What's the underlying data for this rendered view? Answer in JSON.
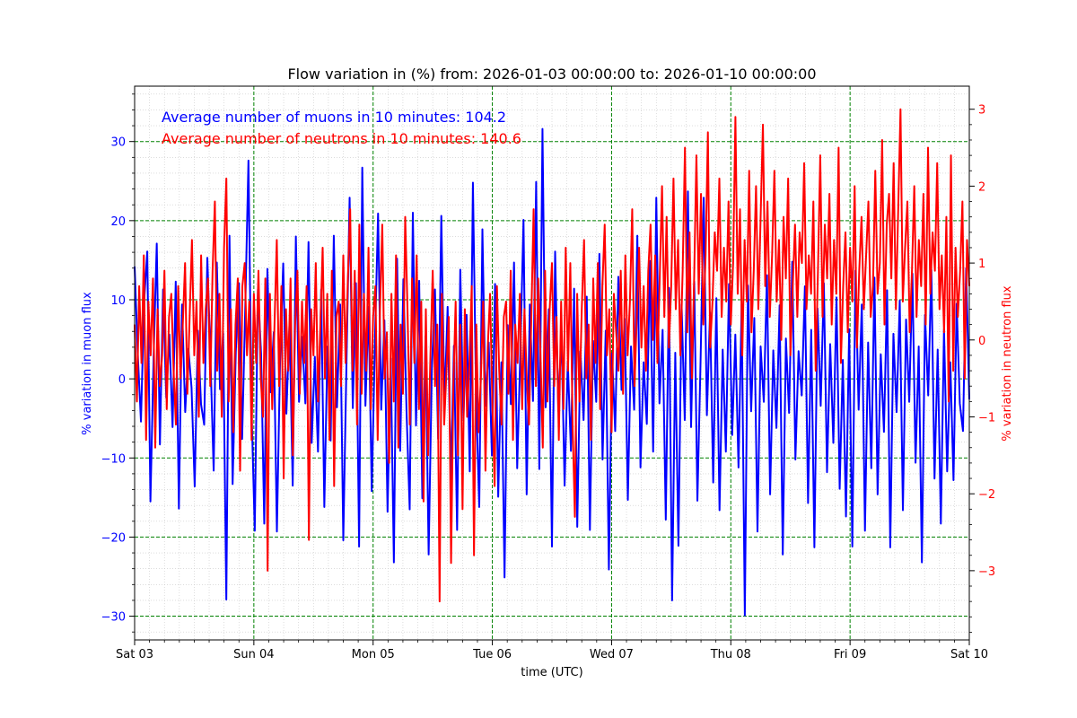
{
  "chart_data": {
    "type": "line",
    "title": "Flow variation in (%) from: 2026-01-03 00:00:00 to: 2026-01-10 00:00:00",
    "xlabel": "time (UTC)",
    "ylabel_left": "% variation in muon flux",
    "ylabel_right": "% variation in neutron flux",
    "x_range": [
      "2026-01-03 00:00:00",
      "2026-01-10 00:00:00"
    ],
    "x_ticks": [
      {
        "date": "2026-01-03",
        "label": "Sat 03"
      },
      {
        "date": "2026-01-04",
        "label": "Sun 04"
      },
      {
        "date": "2026-01-05",
        "label": "Mon 05"
      },
      {
        "date": "2026-01-06",
        "label": "Tue 06"
      },
      {
        "date": "2026-01-07",
        "label": "Wed 07"
      },
      {
        "date": "2026-01-08",
        "label": "Thu 08"
      },
      {
        "date": "2026-01-09",
        "label": "Fri 09"
      },
      {
        "date": "2026-01-10",
        "label": "Sat 10"
      }
    ],
    "ylim_left": [
      -33,
      37
    ],
    "ylim_right": [
      -3.9,
      3.3
    ],
    "yticks_left": [
      -30,
      -20,
      -10,
      0,
      10,
      20,
      30
    ],
    "yticks_right": [
      -3,
      -2,
      -1,
      0,
      1,
      2,
      3
    ],
    "grid": true,
    "annotations": [
      {
        "text": "Average number of muons in 10 minutes: 104.2",
        "color": "#0000ff"
      },
      {
        "text": "Average number of neutrons in 10 minutes: 140.6",
        "color": "#ff0000"
      }
    ],
    "series": [
      {
        "axis": "left",
        "color": "#0000ff",
        "sample_interval": "10 minutes",
        "values": [
          14.2,
          3.1,
          -5.4,
          9.8,
          16.1,
          -15.5,
          2.7,
          17.1,
          -8.3,
          11.3,
          -2.4,
          5.6,
          -6.1,
          12.3,
          -16.4,
          9.4,
          -4.2,
          3.8,
          -1.1,
          -13.6,
          6.1,
          -3.2,
          -5.8,
          15.3,
          2.4,
          -11.6,
          14.7,
          -1.3,
          5.8,
          -27.9,
          18.1,
          -13.3,
          3.4,
          12.1,
          -7.6,
          9.1,
          27.6,
          -4.1,
          -19.2,
          11.3,
          3.2,
          -18.3,
          13.9,
          -1.7,
          5.9,
          -19.3,
          2.2,
          14.6,
          -4.4,
          7.1,
          -13.5,
          18.0,
          -2.9,
          5.3,
          -3.1,
          17.3,
          -8.1,
          2.8,
          -9.2,
          11.3,
          -16.2,
          4.1,
          -7.8,
          18.1,
          -3.6,
          9.4,
          -20.4,
          1.9,
          22.9,
          -3.7,
          12.1,
          -21.2,
          26.7,
          -3.4,
          9.1,
          -14.2,
          4.6,
          20.9,
          -3.9,
          7.4,
          -16.8,
          2.6,
          -23.2,
          15.2,
          -9.1,
          12.6,
          -4.1,
          -16.5,
          21.0,
          -5.9,
          12.4,
          -15.1,
          5.4,
          -22.2,
          1.1,
          11.3,
          -7.6,
          20.6,
          -3.4,
          9.1,
          -12.7,
          4.2,
          -19.1,
          13.8,
          -5.3,
          8.1,
          -11.7,
          24.8,
          -2.1,
          -16.2,
          18.9,
          -3.4,
          4.6,
          -9.7,
          12.0,
          -14.9,
          2.1,
          -25.1,
          6.8,
          -3.2,
          14.7,
          -11.3,
          3.4,
          20.1,
          -14.6,
          9.4,
          -2.8,
          24.9,
          -11.4,
          31.6,
          -3.6,
          8.8,
          -21.2,
          16.1,
          -4.1,
          5.9,
          -13.5,
          2.2,
          -9.1,
          11.4,
          -18.7,
          3.5,
          -5.2,
          10.4,
          -19.1,
          4.8,
          -2.9,
          15.8,
          -10.2,
          6.1,
          -24.1,
          3.2,
          -6.6,
          12.9,
          -1.4,
          7.6,
          -15.3,
          4.1,
          -3.9,
          18.1,
          -11.2,
          2.1,
          -5.7,
          14.9,
          -9.2,
          22.9,
          -3.1,
          6.2,
          -17.8,
          11.5,
          -28.0,
          3.3,
          -21.1,
          9.4,
          -5.2,
          23.7,
          -6.1,
          12.3,
          -15.4,
          2.2,
          22.9,
          -4.6,
          8.4,
          -13.1,
          10.2,
          -16.6,
          3.7,
          -9.2,
          12.0,
          -7.1,
          5.6,
          -11.2,
          9.4,
          -29.9,
          11.8,
          -4.1,
          7.7,
          -19.3,
          4.1,
          -2.9,
          13.1,
          -14.6,
          3.6,
          -6.2,
          9.3,
          -22.2,
          5.1,
          -4.3,
          14.8,
          -10.2,
          3.5,
          -2.1,
          11.7,
          -15.7,
          6.2,
          -21.3,
          8.9,
          -3.4,
          12.1,
          -11.8,
          4.4,
          -8.1,
          10.3,
          -13.9,
          2.4,
          -17.4,
          6.3,
          -21.2,
          13.7,
          -3.9,
          9.4,
          -19.2,
          4.6,
          -11.3,
          12.8,
          -14.6,
          3.1,
          -6.7,
          11.2,
          -21.3,
          5.7,
          -4.2,
          9.9,
          -16.6,
          7.5,
          -2.9,
          13.3,
          -10.6,
          4.1,
          -23.2,
          8.1,
          -2.1,
          13.8,
          -12.6,
          3.7,
          -18.3,
          6.3,
          -11.7,
          2.1,
          -12.8,
          9.5,
          -3.1,
          -6.6,
          14.0,
          -2.6
        ]
      },
      {
        "axis": "right",
        "color": "#ff0000",
        "sample_interval": "10 minutes",
        "values": [
          0.2,
          -0.8,
          0.7,
          -0.3,
          1.1,
          -1.3,
          0.5,
          -0.2,
          0.8,
          -1.4,
          0.4,
          -0.6,
          -0.2,
          0.9,
          -0.9,
          0.3,
          0.6,
          -0.4,
          -1.1,
          0.7,
          -0.5,
          0.2,
          1.0,
          -0.7,
          0.3,
          1.3,
          -0.2,
          0.5,
          -1.0,
          1.1,
          -0.3,
          0.4,
          0.8,
          -0.6,
          0.9,
          1.8,
          -0.4,
          0.6,
          -1.0,
          1.2,
          2.1,
          -0.8,
          0.4,
          -1.2,
          0.2,
          0.8,
          -1.7,
          0.7,
          1.0,
          -0.2,
          0.5,
          -1.3,
          0.6,
          -0.3,
          0.9,
          -0.5,
          -1.0,
          0.8,
          -3.0,
          0.6,
          -0.9,
          0.2,
          1.3,
          -0.6,
          0.7,
          -1.8,
          0.4,
          -0.4,
          0.8,
          -1.5,
          0.2,
          0.9,
          -0.7,
          0.5,
          -0.3,
          0.7,
          -2.6,
          0.4,
          -0.2,
          1.0,
          -0.8,
          0.2,
          1.2,
          -0.5,
          0.6,
          -1.3,
          0.9,
          -1.9,
          0.3,
          0.5,
          -0.6,
          1.1,
          -0.3,
          0.8,
          1.7,
          -0.4,
          0.9,
          -1.1,
          1.5,
          -0.7,
          0.6,
          -0.4,
          1.2,
          -0.9,
          0.3,
          0.7,
          -1.3,
          0.4,
          1.5,
          -0.5,
          0.1,
          -1.6,
          0.6,
          -0.8,
          1.1,
          -1.4,
          0.2,
          -0.7,
          1.6,
          0.4,
          -1.1,
          0.8,
          -0.3,
          1.1,
          -0.9,
          0.5,
          -2.1,
          0.4,
          -1.5,
          -0.2,
          0.9,
          -0.6,
          0.2,
          -3.4,
          0.6,
          -1.1,
          -0.4,
          0.3,
          -2.9,
          -0.6,
          0.5,
          -1.5,
          0.2,
          -2.2,
          0.4,
          -1.0,
          -0.3,
          0.7,
          -2.8,
          0.2,
          -1.2,
          -0.5,
          0.5,
          -1.7,
          -0.1,
          0.6,
          -0.8,
          -1.9,
          0.7,
          -0.4,
          -1.1,
          0.3,
          0.5,
          -0.7,
          0.9,
          -1.3,
          0.2,
          -0.3,
          0.6,
          -0.9,
          0.4,
          -0.5,
          -1.1,
          0.3,
          1.7,
          -0.6,
          0.8,
          -0.2,
          -1.4,
          0.9,
          -0.8,
          0.4,
          1.0,
          -0.6,
          0.3,
          -1.3,
          0.5,
          -0.9,
          1.2,
          -0.4,
          1.0,
          -1.1,
          -2.3,
          0.6,
          -0.8,
          0.4,
          1.3,
          -0.5,
          0.2,
          -1.3,
          0.8,
          -0.3,
          1.0,
          -0.9,
          0.7,
          1.5,
          -0.2,
          0.4,
          -1.2,
          0.6,
          0.1,
          -0.4,
          0.9,
          -0.7,
          1.1,
          -0.2,
          0.5,
          1.7,
          -0.6,
          0.3,
          1.2,
          -0.1,
          0.7,
          -0.4,
          0.9,
          1.5,
          0.0,
          1.1,
          -0.3,
          0.8,
          2.0,
          0.3,
          1.6,
          -0.1,
          0.7,
          2.1,
          0.4,
          1.3,
          -0.2,
          0.9,
          2.5,
          0.1,
          1.4,
          -0.5,
          0.8,
          2.4,
          0.6,
          1.9,
          0.2,
          1.1,
          2.7,
          -0.1,
          0.5,
          1.4,
          0.9,
          2.1,
          0.3,
          1.2,
          0.5,
          1.8,
          0.2,
          1.0,
          2.9,
          0.6,
          1.7,
          -0.2,
          1.3,
          0.5,
          2.2,
          0.1,
          0.9,
          2.0,
          0.4,
          1.6,
          2.8,
          0.7,
          1.8,
          0.3,
          1.1,
          2.2,
          0.5,
          1.3,
          0.0,
          1.6,
          0.8,
          2.1,
          -0.2,
          0.7,
          1.5,
          0.3,
          1.4,
          1.0,
          2.3,
          0.4,
          1.1,
          0.6,
          1.8,
          -0.4,
          0.9,
          2.4,
          0.3,
          1.5,
          0.8,
          1.9,
          0.2,
          1.3,
          0.6,
          2.5,
          -0.3,
          0.7,
          1.4,
          0.1,
          1.2,
          0.5,
          2.0,
          -0.1,
          0.9,
          1.6,
          0.4,
          1.1,
          1.8,
          0.3,
          0.7,
          2.2,
          0.6,
          1.0,
          2.6,
          0.2,
          1.5,
          1.9,
          0.8,
          2.3,
          0.4,
          1.7,
          3.0,
          0.5,
          1.2,
          1.8,
          0.1,
          0.9,
          2.0,
          0.3,
          1.3,
          0.7,
          1.9,
          0.2,
          2.5,
          0.6,
          1.4,
          0.9,
          2.3,
          0.4,
          1.1,
          0.1,
          1.6,
          -0.8,
          2.4,
          -0.4,
          1.2,
          0.3,
          0.9,
          1.8,
          -0.5,
          1.3,
          0.7
        ]
      }
    ]
  }
}
